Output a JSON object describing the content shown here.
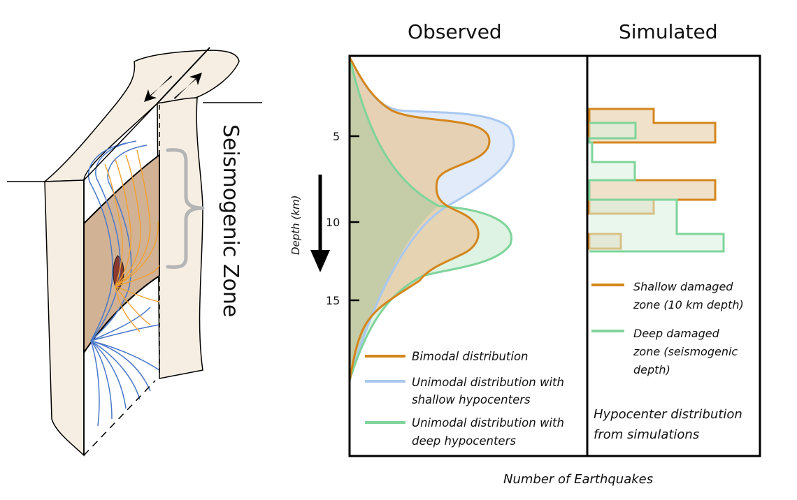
{
  "fault_diagram": {
    "zone_label": "Seismogenic Zone"
  },
  "panels": {
    "observed_title": "Observed",
    "simulated_title": "Simulated"
  },
  "axes": {
    "ylabel": "Depth (km)",
    "xlabel": "Number of Earthquakes",
    "yticks": [
      "5",
      "10",
      "15"
    ]
  },
  "legend": {
    "bimodal": "Bimodal distribution",
    "shallow_l1": "Unimodal distribution with",
    "shallow_l2": "shallow hypocenters",
    "deep_l1": "Unimodal distribution with",
    "deep_l2": "deep hypocenters"
  },
  "sim_legend": {
    "shallow_l1": "Shallow damaged",
    "shallow_l2": "zone (10 km depth)",
    "deep_l1": "Deep damaged",
    "deep_l2": "zone (seismogenic",
    "deep_l3": "depth)",
    "note_l1": "Hypocenter distribution",
    "note_l2": "from simulations"
  },
  "colors": {
    "bimodal": "#D4861C",
    "shallow": "#A9C8F0",
    "deep": "#7FD49A",
    "bimodal_fill": "#E6CDA8",
    "shallow_fill": "#DCE8F8",
    "deep_fill": "#D8F1DE",
    "overlap_fill": "#B8C9A6",
    "slab": "#F6EEE2",
    "rupture": "#D2B295",
    "nucleation": "#8A3A2E",
    "brace": "#B5B5B5",
    "blue_lines": "#4A78C8",
    "orange_lines": "#F0A030"
  },
  "chart_data": {
    "type": "area",
    "x_label": "Number of Earthquakes",
    "y_label": "Depth (km)",
    "y_range": [
      0,
      18.5
    ],
    "y_inverted": true,
    "y_ticks": [
      5,
      10,
      15
    ],
    "observed": [
      {
        "name": "Bimodal distribution",
        "peaks_km": [
          5,
          10.5
        ]
      },
      {
        "name": "Unimodal distribution with shallow hypocenters",
        "peak_km": 5
      },
      {
        "name": "Unimodal distribution with deep hypocenters",
        "peak_km": 10.5
      }
    ],
    "simulated": [
      {
        "name": "Shallow damaged zone (10 km depth)",
        "peak_bins_km": [
          4.4,
          7.9
        ]
      },
      {
        "name": "Deep damaged zone (seismogenic depth)",
        "peak_bins_km": [
          8.9,
          11.0
        ]
      }
    ]
  }
}
